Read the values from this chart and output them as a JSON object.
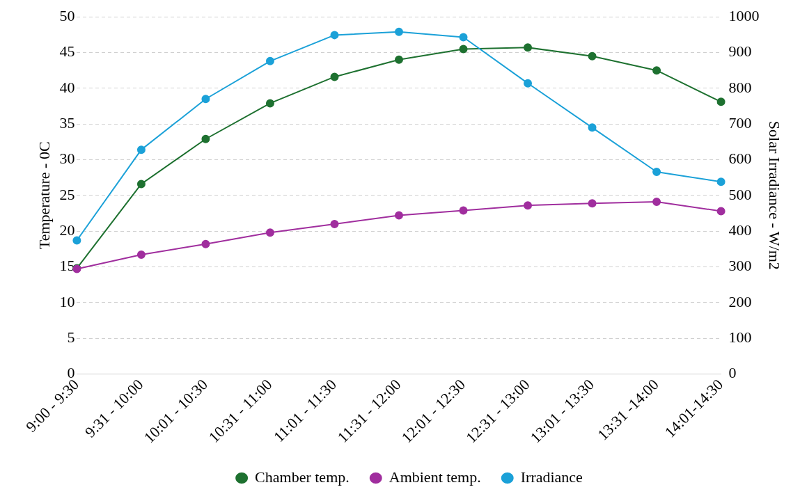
{
  "chart_data": {
    "type": "line",
    "ylabel": "Temperature - 0C",
    "y2label": "Solar Irradiance - W/m2",
    "categories": [
      "9:00 - 9:30",
      "9:31 - 10:00",
      "10:01 - 10:30",
      "10:31 - 11:00",
      "11:01 - 11:30",
      "11:31 - 12:00",
      "12:01 - 12:30",
      "12:31 - 13:00",
      "13:01 - 13:30",
      "13:31 -14:00",
      "14:01-14:30"
    ],
    "series": [
      {
        "name": "Chamber temp.",
        "color": "#1e7130",
        "values": [
          14.8,
          26.6,
          32.9,
          37.9,
          41.6,
          44.0,
          45.5,
          45.7,
          44.5,
          42.5,
          38.1
        ]
      },
      {
        "name": "Ambient temp.",
        "color": "#a02e9e",
        "values": [
          14.7,
          16.7,
          18.2,
          19.8,
          21.0,
          22.2,
          22.9,
          23.6,
          23.9,
          24.1,
          22.8
        ]
      },
      {
        "name": "Irradiance",
        "color": "#1ba1d8",
        "axis": "y2",
        "values": [
          374,
          628,
          770,
          876,
          949,
          958,
          943,
          814,
          690,
          566,
          538
        ]
      }
    ],
    "ylim": [
      0,
      50
    ],
    "yticks": [
      0,
      5,
      10,
      15,
      20,
      25,
      30,
      35,
      40,
      45,
      50
    ],
    "y2lim": [
      0,
      1000
    ],
    "y2ticks": [
      0,
      100,
      200,
      300,
      400,
      500,
      600,
      700,
      800,
      900,
      1000
    ],
    "grid": "y",
    "legend": "bottom",
    "marker": "circle",
    "line_style": "solid"
  }
}
